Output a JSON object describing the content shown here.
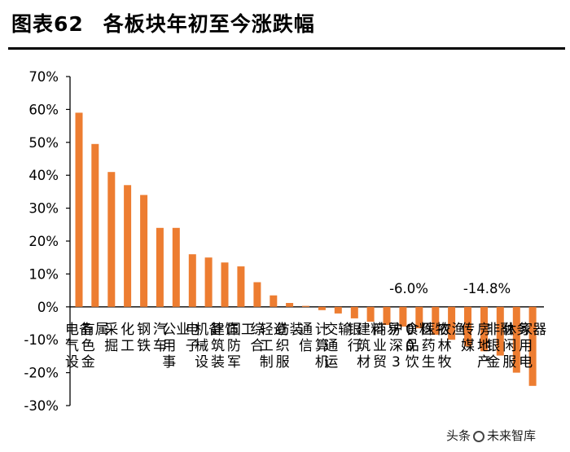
{
  "header": {
    "label": "图表62",
    "title": "各板块年初至今涨跌幅"
  },
  "watermark": {
    "prefix": "头条",
    "brand": "未来智库"
  },
  "chart_data": {
    "type": "bar",
    "categories": [
      "电气设备",
      "有色金属",
      "采掘",
      "化工",
      "钢铁",
      "汽车",
      "公用事业",
      "电子",
      "机械设备",
      "建筑装饰",
      "国防军工",
      "综合",
      "轻工制造",
      "纺织服装",
      "通信",
      "计算机",
      "交通运输",
      "银行",
      "建筑材料",
      "商业贸易",
      "沪深300",
      "食品饮料",
      "医药生物",
      "农林牧渔",
      "传媒",
      "房地产",
      "非银金融",
      "休闲服务",
      "家用电器"
    ],
    "values": [
      59,
      49.5,
      41,
      37,
      34,
      24,
      24,
      16,
      15,
      13.5,
      12.3,
      7.5,
      3.5,
      1.2,
      0.3,
      -1,
      -2,
      -3.5,
      -4.5,
      -5.5,
      -6,
      -6.5,
      -8.5,
      -10,
      -12,
      -13.5,
      -14.8,
      -20,
      -24
    ],
    "annotations": [
      "-6.0%",
      "-14.8%"
    ],
    "ylim": [
      -30,
      70
    ],
    "yticks": [
      "70%",
      "60%",
      "50%",
      "40%",
      "30%",
      "20%",
      "10%",
      "0%",
      "-10%",
      "-20%",
      "-30%"
    ],
    "bar_color": "#ED7D31",
    "grid": false
  }
}
